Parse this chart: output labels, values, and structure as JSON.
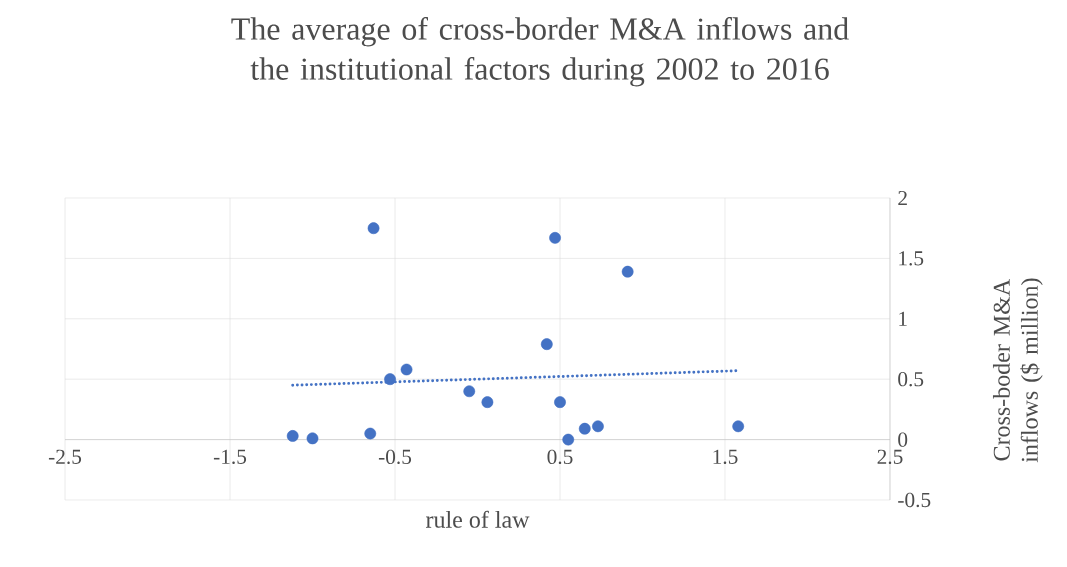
{
  "chart_data": {
    "type": "scatter",
    "title": "The average of cross-border M&A inflows and the institutional factors during 2002 to 2016",
    "xlabel": "rule of law",
    "ylabel": "Cross-boder M&A inflows ($ million)",
    "xlim": [
      -2.5,
      2.5
    ],
    "xticks": [
      -2.5,
      -1.5,
      -0.5,
      0.5,
      1.5,
      2.5
    ],
    "ylim": [
      -0.5,
      2
    ],
    "yticks": [
      -0.5,
      0,
      0.5,
      1,
      1.5,
      2
    ],
    "grid": true,
    "marker": "circle",
    "series": [
      {
        "color": "#4472c4",
        "x": [
          -1.12,
          -1.0,
          -0.65,
          -0.63,
          -0.53,
          -0.43,
          -0.05,
          0.06,
          0.42,
          0.47,
          0.5,
          0.55,
          0.65,
          0.73,
          0.91,
          1.58
        ],
        "values": [
          0.03,
          0.01,
          0.05,
          1.75,
          0.5,
          0.58,
          0.4,
          0.31,
          0.79,
          1.67,
          0.31,
          0.0,
          0.09,
          0.11,
          1.39,
          0.11
        ]
      },
      {
        "type": "line",
        "color": "#4472c4",
        "marker": "none",
        "line_style": "dotted",
        "x": [
          -1.12,
          1.58
        ],
        "values": [
          0.45,
          0.57
        ]
      }
    ]
  }
}
